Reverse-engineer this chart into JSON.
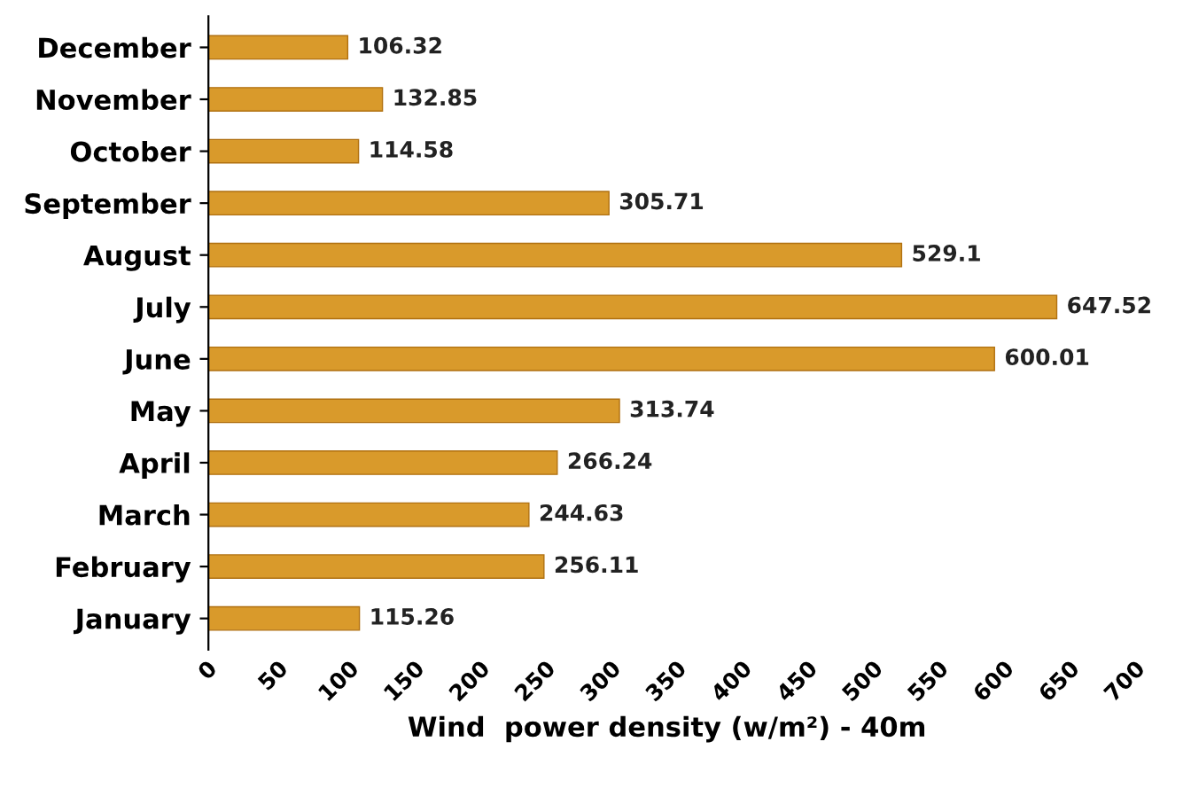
{
  "chart_data": {
    "type": "bar",
    "orientation": "horizontal",
    "categories": [
      "December",
      "November",
      "October",
      "September",
      "August",
      "July",
      "June",
      "May",
      "April",
      "March",
      "February",
      "January"
    ],
    "values": [
      106.32,
      132.85,
      114.58,
      305.71,
      529.1,
      647.52,
      600.01,
      313.74,
      266.24,
      244.63,
      256.11,
      115.26
    ],
    "color": "#d99a2b",
    "xlabel": "Wind  power density (w/m²) - 40m",
    "xlim": [
      0,
      700
    ],
    "xticks": [
      0,
      50,
      100,
      150,
      200,
      250,
      300,
      350,
      400,
      450,
      500,
      550,
      600,
      650,
      700
    ],
    "data_labels": true,
    "grid": false
  }
}
